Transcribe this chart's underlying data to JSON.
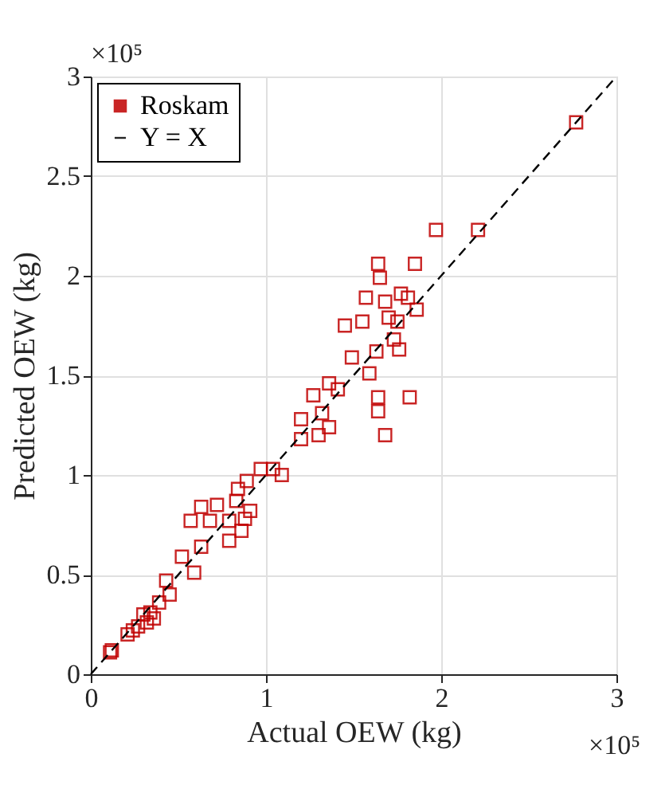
{
  "chart_data": {
    "type": "scatter",
    "xlabel": "Actual OEW (kg)",
    "ylabel": "Predicted OEW (kg)",
    "xlim": [
      0,
      3
    ],
    "ylim": [
      0,
      3
    ],
    "xticks": [
      0,
      1,
      2,
      3
    ],
    "yticks": [
      0,
      0.5,
      1,
      1.5,
      2,
      2.5,
      3
    ],
    "grid": true,
    "legend": "top left",
    "annotations": [
      "×10⁵",
      "×10⁵"
    ],
    "series": [
      {
        "name": "Roskam",
        "color": "#c00000",
        "marker": "square",
        "x": [
          0.11,
          0.12,
          0.21,
          0.24,
          0.27,
          0.3,
          0.32,
          0.34,
          0.36,
          0.39,
          0.43,
          0.45,
          0.52,
          0.59,
          0.57,
          0.63,
          0.63,
          0.68,
          0.72,
          0.79,
          0.79,
          0.83,
          0.84,
          0.86,
          0.88,
          0.89,
          0.91,
          0.97,
          1.04,
          1.09,
          1.2,
          1.3,
          1.36,
          1.32,
          1.2,
          1.27,
          1.36,
          1.41,
          1.45,
          1.49,
          1.55,
          1.57,
          1.59,
          1.63,
          1.64,
          1.64,
          1.65,
          1.64,
          1.68,
          1.7,
          1.73,
          1.75,
          1.76,
          1.77,
          1.81,
          1.82,
          1.85,
          1.86,
          1.68,
          1.97,
          2.21,
          2.77
        ],
        "values": [
          0.11,
          0.12,
          0.2,
          0.22,
          0.24,
          0.3,
          0.26,
          0.31,
          0.28,
          0.36,
          0.47,
          0.4,
          0.59,
          0.51,
          0.77,
          0.84,
          0.64,
          0.77,
          0.85,
          0.77,
          0.67,
          0.87,
          0.93,
          0.72,
          0.78,
          0.97,
          0.82,
          1.03,
          1.03,
          1.0,
          1.18,
          1.2,
          1.24,
          1.31,
          1.28,
          1.4,
          1.46,
          1.43,
          1.75,
          1.59,
          1.77,
          1.89,
          1.51,
          1.62,
          1.39,
          1.32,
          1.99,
          2.06,
          1.87,
          1.79,
          1.68,
          1.77,
          1.63,
          1.91,
          1.89,
          1.39,
          2.06,
          1.83,
          1.2,
          2.23,
          2.23,
          2.77
        ]
      },
      {
        "name": "Y = X",
        "type": "line",
        "color": "#000000",
        "line_style": "dashed",
        "x": [
          0,
          3
        ],
        "values": [
          0,
          3
        ]
      }
    ]
  }
}
